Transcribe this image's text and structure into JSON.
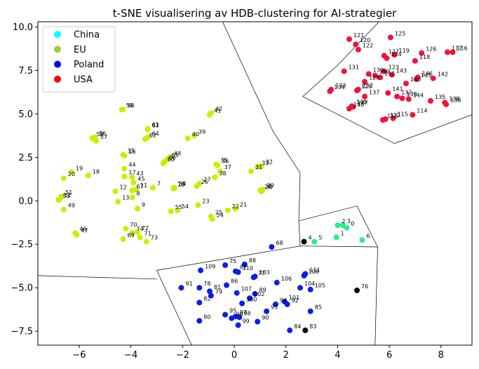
{
  "chart_data": {
    "type": "scatter",
    "title": "t-SNE visualisering av HDB-clustering for AI-strategier",
    "xlabel": "",
    "ylabel": "",
    "xlim": [
      -7.6,
      9.2
    ],
    "ylim": [
      -8.3,
      10.3
    ],
    "xticks": [
      "−6",
      "−4",
      "−2",
      "0",
      "2",
      "4",
      "6",
      "8"
    ],
    "xtick_values": [
      -6,
      -4,
      -2,
      0,
      2,
      4,
      6,
      8
    ],
    "yticks": [
      "−7.5",
      "−5.0",
      "−2.5",
      "0.0",
      "2.5",
      "5.0",
      "7.5",
      "10.0"
    ],
    "ytick_values": [
      -7.5,
      -5.0,
      -2.5,
      0.0,
      2.5,
      5.0,
      7.5,
      10.0
    ],
    "grid": false,
    "legend_position": "top-left",
    "legend": [
      {
        "name": "China",
        "color": "#00ffff"
      },
      {
        "name": "EU",
        "color": "#9acd32"
      },
      {
        "name": "Poland",
        "color": "#0000ff"
      },
      {
        "name": "USA",
        "color": "#ff0000"
      }
    ],
    "cluster_colors": {
      "eu_cluster": "#c8f000",
      "poland_cluster": "#0a1ee6",
      "usa_cluster": "#f0143c",
      "china_cluster": "#28f08c",
      "noise": "#000000"
    },
    "points": [
      {
        "id": "0",
        "x": 4.35,
        "y": -1.55,
        "c": "china_cluster"
      },
      {
        "id": "1",
        "x": 3.95,
        "y": -2.1,
        "c": "china_cluster"
      },
      {
        "id": "2",
        "x": 4.0,
        "y": -1.4,
        "c": "china_cluster"
      },
      {
        "id": "3",
        "x": 4.2,
        "y": -1.4,
        "c": "china_cluster"
      },
      {
        "id": "4",
        "x": 2.7,
        "y": -2.35,
        "c": "noise"
      },
      {
        "id": "5",
        "x": 3.1,
        "y": -2.35,
        "c": "china_cluster"
      },
      {
        "id": "6",
        "x": 4.95,
        "y": -2.25,
        "c": "china_cluster"
      },
      {
        "id": "7",
        "x": -3.15,
        "y": 0.75,
        "c": "eu_cluster"
      },
      {
        "id": "8",
        "x": -3.95,
        "y": 0.2,
        "c": "eu_cluster"
      },
      {
        "id": "9",
        "x": -3.75,
        "y": -0.45,
        "c": "eu_cluster"
      },
      {
        "id": "10",
        "x": -2.35,
        "y": 0.7,
        "c": "eu_cluster"
      },
      {
        "id": "11",
        "x": -3.8,
        "y": 0.65,
        "c": "eu_cluster"
      },
      {
        "id": "12",
        "x": -4.6,
        "y": 0.55,
        "c": "eu_cluster"
      },
      {
        "id": "13",
        "x": -4.5,
        "y": -0.05,
        "c": "eu_cluster"
      },
      {
        "id": "14",
        "x": -2.35,
        "y": 0.75,
        "c": "eu_cluster"
      },
      {
        "id": "15",
        "x": -4.3,
        "y": 2.65,
        "c": "eu_cluster"
      },
      {
        "id": "16",
        "x": -4.25,
        "y": 2.6,
        "c": "eu_cluster"
      },
      {
        "id": "17",
        "x": -4.25,
        "y": 1.4,
        "c": "eu_cluster"
      },
      {
        "id": "18",
        "x": -5.65,
        "y": 1.45,
        "c": "eu_cluster"
      },
      {
        "id": "19",
        "x": -6.3,
        "y": 1.65,
        "c": "eu_cluster"
      },
      {
        "id": "20",
        "x": -6.6,
        "y": 1.3,
        "c": "eu_cluster"
      },
      {
        "id": "21",
        "x": 0.05,
        "y": -0.45,
        "c": "eu_cluster"
      },
      {
        "id": "22",
        "x": -0.25,
        "y": -0.55,
        "c": "eu_cluster"
      },
      {
        "id": "23",
        "x": -1.4,
        "y": -0.25,
        "c": "eu_cluster"
      },
      {
        "id": "24",
        "x": -0.85,
        "y": -1.05,
        "c": "eu_cluster"
      },
      {
        "id": "25",
        "x": -0.9,
        "y": -0.9,
        "c": "eu_cluster"
      },
      {
        "id": "26",
        "x": -1.45,
        "y": 0.85,
        "c": "eu_cluster"
      },
      {
        "id": "27",
        "x": -1.35,
        "y": 1.0,
        "c": "eu_cluster"
      },
      {
        "id": "28",
        "x": 1.0,
        "y": 0.6,
        "c": "eu_cluster"
      },
      {
        "id": "29",
        "x": 1.1,
        "y": 0.65,
        "c": "eu_cluster"
      },
      {
        "id": "30",
        "x": 1.05,
        "y": 0.55,
        "c": "eu_cluster"
      },
      {
        "id": "31",
        "x": 0.65,
        "y": 1.7,
        "c": "eu_cluster"
      },
      {
        "id": "32",
        "x": 1.05,
        "y": 2.0,
        "c": "eu_cluster"
      },
      {
        "id": "33",
        "x": 0.9,
        "y": 1.95,
        "c": "eu_cluster"
      },
      {
        "id": "34",
        "x": -2.3,
        "y": 0.75,
        "c": "eu_cluster"
      },
      {
        "id": "35",
        "x": -0.7,
        "y": 2.1,
        "c": "eu_cluster"
      },
      {
        "id": "36",
        "x": -0.65,
        "y": 2.05,
        "c": "eu_cluster"
      },
      {
        "id": "37",
        "x": -0.55,
        "y": 1.7,
        "c": "eu_cluster"
      },
      {
        "id": "38",
        "x": -0.75,
        "y": 1.35,
        "c": "eu_cluster"
      },
      {
        "id": "39",
        "x": -1.55,
        "y": 3.75,
        "c": "eu_cluster"
      },
      {
        "id": "40",
        "x": -1.8,
        "y": 3.6,
        "c": "eu_cluster"
      },
      {
        "id": "41",
        "x": -0.95,
        "y": 4.95,
        "c": "eu_cluster"
      },
      {
        "id": "42",
        "x": -0.9,
        "y": 5.05,
        "c": "eu_cluster"
      },
      {
        "id": "43",
        "x": -3.95,
        "y": 1.35,
        "c": "eu_cluster"
      },
      {
        "id": "44",
        "x": -4.25,
        "y": 1.85,
        "c": "eu_cluster"
      },
      {
        "id": "45",
        "x": -3.9,
        "y": 1.05,
        "c": "eu_cluster"
      },
      {
        "id": "46",
        "x": -6.15,
        "y": -1.85,
        "c": "eu_cluster"
      },
      {
        "id": "47",
        "x": -6.1,
        "y": -1.95,
        "c": "eu_cluster"
      },
      {
        "id": "48",
        "x": -2.5,
        "y": 2.5,
        "c": "eu_cluster"
      },
      {
        "id": "49",
        "x": -6.6,
        "y": -0.5,
        "c": "eu_cluster"
      },
      {
        "id": "50",
        "x": -4.3,
        "y": 5.25,
        "c": "eu_cluster"
      },
      {
        "id": "51",
        "x": -6.7,
        "y": 0.25,
        "c": "eu_cluster"
      },
      {
        "id": "52",
        "x": -6.75,
        "y": 0.1,
        "c": "eu_cluster"
      },
      {
        "id": "53",
        "x": -6.8,
        "y": 0.05,
        "c": "eu_cluster"
      },
      {
        "id": "54",
        "x": -2.2,
        "y": -0.55,
        "c": "eu_cluster"
      },
      {
        "id": "55",
        "x": -2.45,
        "y": -0.6,
        "c": "eu_cluster"
      },
      {
        "id": "56",
        "x": -5.4,
        "y": 3.65,
        "c": "eu_cluster"
      },
      {
        "id": "57",
        "x": -5.35,
        "y": 3.45,
        "c": "eu_cluster"
      },
      {
        "id": "58",
        "x": -5.5,
        "y": 3.6,
        "c": "eu_cluster"
      },
      {
        "id": "59",
        "x": -4.35,
        "y": 5.25,
        "c": "eu_cluster"
      },
      {
        "id": "60",
        "x": -2.75,
        "y": 2.15,
        "c": "eu_cluster"
      },
      {
        "id": "61",
        "x": -3.35,
        "y": 4.15,
        "c": "eu_cluster"
      },
      {
        "id": "62",
        "x": -3.45,
        "y": 3.55,
        "c": "eu_cluster"
      },
      {
        "id": "63",
        "x": -3.35,
        "y": 4.1,
        "c": "eu_cluster"
      },
      {
        "id": "64",
        "x": -3.35,
        "y": 3.65,
        "c": "eu_cluster"
      },
      {
        "id": "65",
        "x": -2.6,
        "y": 2.4,
        "c": "eu_cluster"
      },
      {
        "id": "66",
        "x": -2.7,
        "y": 2.25,
        "c": "eu_cluster"
      },
      {
        "id": "67",
        "x": -3.95,
        "y": 0.6,
        "c": "eu_cluster"
      },
      {
        "id": "68",
        "x": 1.45,
        "y": -2.65,
        "c": "poland_cluster"
      },
      {
        "id": "69",
        "x": -4.3,
        "y": -2.2,
        "c": "eu_cluster"
      },
      {
        "id": "70",
        "x": -4.2,
        "y": -1.6,
        "c": "eu_cluster"
      },
      {
        "id": "71",
        "x": -3.65,
        "y": -2.1,
        "c": "eu_cluster"
      },
      {
        "id": "72",
        "x": -3.75,
        "y": -1.8,
        "c": "eu_cluster"
      },
      {
        "id": "73",
        "x": -3.4,
        "y": -2.35,
        "c": "eu_cluster"
      },
      {
        "id": "74",
        "x": -3.95,
        "y": -1.85,
        "c": "eu_cluster"
      },
      {
        "id": "75",
        "x": -0.35,
        "y": -3.7,
        "c": "poland_cluster"
      },
      {
        "id": "76",
        "x": 4.75,
        "y": -5.15,
        "c": "noise"
      },
      {
        "id": "77",
        "x": 0.75,
        "y": -4.4,
        "c": "poland_cluster"
      },
      {
        "id": "78",
        "x": -1.35,
        "y": -5.0,
        "c": "poland_cluster"
      },
      {
        "id": "79",
        "x": -0.9,
        "y": -5.45,
        "c": "poland_cluster"
      },
      {
        "id": "80",
        "x": -1.35,
        "y": -6.9,
        "c": "poland_cluster"
      },
      {
        "id": "81",
        "x": -0.95,
        "y": -5.2,
        "c": "poland_cluster"
      },
      {
        "id": "82",
        "x": -1.35,
        "y": -5.85,
        "c": "poland_cluster"
      },
      {
        "id": "83",
        "x": 2.75,
        "y": -7.45,
        "c": "noise"
      },
      {
        "id": "84",
        "x": 2.15,
        "y": -7.45,
        "c": "poland_cluster"
      },
      {
        "id": "85",
        "x": 2.95,
        "y": -6.35,
        "c": "poland_cluster"
      },
      {
        "id": "86",
        "x": -0.3,
        "y": -4.85,
        "c": "poland_cluster"
      },
      {
        "id": "87",
        "x": 0.05,
        "y": -4.05,
        "c": "poland_cluster"
      },
      {
        "id": "88",
        "x": 0.4,
        "y": -3.65,
        "c": "poland_cluster"
      },
      {
        "id": "89",
        "x": 0.8,
        "y": -5.35,
        "c": "poland_cluster"
      },
      {
        "id": "90",
        "x": 0.9,
        "y": -6.95,
        "c": "poland_cluster"
      },
      {
        "id": "91",
        "x": -2.05,
        "y": -5.0,
        "c": "poland_cluster"
      },
      {
        "id": "92",
        "x": 2.05,
        "y": -5.95,
        "c": "poland_cluster"
      },
      {
        "id": "93",
        "x": 1.25,
        "y": -6.35,
        "c": "poland_cluster"
      },
      {
        "id": "94",
        "x": 1.6,
        "y": -5.95,
        "c": "poland_cluster"
      },
      {
        "id": "95",
        "x": -0.35,
        "y": -6.55,
        "c": "poland_cluster"
      },
      {
        "id": "96",
        "x": -0.1,
        "y": -6.75,
        "c": "poland_cluster"
      },
      {
        "id": "97",
        "x": 0.05,
        "y": -6.65,
        "c": "poland_cluster"
      },
      {
        "id": "98",
        "x": 0.2,
        "y": -6.7,
        "c": "poland_cluster"
      },
      {
        "id": "99",
        "x": 0.15,
        "y": -7.15,
        "c": "poland_cluster"
      },
      {
        "id": "100",
        "x": 0.3,
        "y": -5.9,
        "c": "poland_cluster"
      },
      {
        "id": "101",
        "x": 1.95,
        "y": -5.8,
        "c": "poland_cluster"
      },
      {
        "id": "102",
        "x": 0.6,
        "y": -5.6,
        "c": "poland_cluster"
      },
      {
        "id": "103",
        "x": 0.8,
        "y": -4.35,
        "c": "poland_cluster"
      },
      {
        "id": "104",
        "x": 2.55,
        "y": -5.0,
        "c": "poland_cluster"
      },
      {
        "id": "105",
        "x": 2.95,
        "y": -5.1,
        "c": "poland_cluster"
      },
      {
        "id": "106",
        "x": 1.65,
        "y": -4.7,
        "c": "poland_cluster"
      },
      {
        "id": "107",
        "x": 0.1,
        "y": -5.3,
        "c": "poland_cluster"
      },
      {
        "id": "108",
        "x": 2.7,
        "y": -4.3,
        "c": "poland_cluster"
      },
      {
        "id": "109",
        "x": -1.3,
        "y": -4.0,
        "c": "poland_cluster"
      },
      {
        "id": "110",
        "x": 0.15,
        "y": -4.1,
        "c": "poland_cluster"
      },
      {
        "id": "111",
        "x": 2.75,
        "y": -4.2,
        "c": "poland_cluster"
      },
      {
        "id": "112",
        "x": 5.85,
        "y": 4.7,
        "c": "usa_cluster"
      },
      {
        "id": "113",
        "x": 5.75,
        "y": 4.65,
        "c": "usa_cluster"
      },
      {
        "id": "114",
        "x": 6.9,
        "y": 4.95,
        "c": "usa_cluster"
      },
      {
        "id": "115",
        "x": 6.15,
        "y": 4.75,
        "c": "usa_cluster"
      },
      {
        "id": "116",
        "x": 8.45,
        "y": 8.55,
        "c": "usa_cluster"
      },
      {
        "id": "117",
        "x": 8.25,
        "y": 8.55,
        "c": "usa_cluster"
      },
      {
        "id": "118",
        "x": 7.0,
        "y": 8.05,
        "c": "usa_cluster"
      },
      {
        "id": "119",
        "x": 6.2,
        "y": 8.4,
        "c": "usa_cluster"
      },
      {
        "id": "120",
        "x": 4.7,
        "y": 9.0,
        "c": "usa_cluster"
      },
      {
        "id": "121",
        "x": 4.45,
        "y": 9.3,
        "c": "usa_cluster"
      },
      {
        "id": "122",
        "x": 4.8,
        "y": 8.7,
        "c": "usa_cluster"
      },
      {
        "id": "123",
        "x": 5.8,
        "y": 7.45,
        "c": "usa_cluster"
      },
      {
        "id": "124",
        "x": 5.9,
        "y": 8.2,
        "c": "usa_cluster"
      },
      {
        "id": "125",
        "x": 6.05,
        "y": 9.4,
        "c": "usa_cluster"
      },
      {
        "id": "126",
        "x": 7.25,
        "y": 8.5,
        "c": "usa_cluster"
      },
      {
        "id": "127",
        "x": 5.8,
        "y": 8.35,
        "c": "usa_cluster"
      },
      {
        "id": "128",
        "x": 5.05,
        "y": 6.85,
        "c": "usa_cluster"
      },
      {
        "id": "129",
        "x": 4.75,
        "y": 6.35,
        "c": "usa_cluster"
      },
      {
        "id": "130",
        "x": 5.2,
        "y": 7.3,
        "c": "usa_cluster"
      },
      {
        "id": "131",
        "x": 4.25,
        "y": 7.45,
        "c": "usa_cluster"
      },
      {
        "id": "132",
        "x": 6.3,
        "y": 6.0,
        "c": "usa_cluster"
      },
      {
        "id": "133",
        "x": 3.75,
        "y": 6.4,
        "c": "usa_cluster"
      },
      {
        "id": "134",
        "x": 3.7,
        "y": 6.3,
        "c": "usa_cluster"
      },
      {
        "id": "135",
        "x": 7.6,
        "y": 5.75,
        "c": "usa_cluster"
      },
      {
        "id": "136",
        "x": 8.2,
        "y": 5.55,
        "c": "usa_cluster"
      },
      {
        "id": "137",
        "x": 5.05,
        "y": 6.0,
        "c": "usa_cluster"
      },
      {
        "id": "138",
        "x": 8.15,
        "y": 5.65,
        "c": "usa_cluster"
      },
      {
        "id": "139",
        "x": 6.5,
        "y": 5.9,
        "c": "usa_cluster"
      },
      {
        "id": "140",
        "x": 6.65,
        "y": 6.75,
        "c": "usa_cluster"
      },
      {
        "id": "141",
        "x": 5.95,
        "y": 6.2,
        "c": "usa_cluster"
      },
      {
        "id": "142",
        "x": 7.7,
        "y": 7.05,
        "c": "usa_cluster"
      },
      {
        "id": "143",
        "x": 6.1,
        "y": 7.25,
        "c": "usa_cluster"
      },
      {
        "id": "144",
        "x": 6.75,
        "y": 5.85,
        "c": "usa_cluster"
      },
      {
        "id": "145",
        "x": 7.05,
        "y": 7.0,
        "c": "usa_cluster"
      },
      {
        "id": "146",
        "x": 7.1,
        "y": 7.1,
        "c": "usa_cluster"
      },
      {
        "id": "147",
        "x": 4.6,
        "y": 5.4,
        "c": "usa_cluster"
      },
      {
        "id": "148",
        "x": 4.45,
        "y": 5.3,
        "c": "usa_cluster"
      },
      {
        "id": "149",
        "x": 4.55,
        "y": 5.45,
        "c": "usa_cluster"
      },
      {
        "id": "150",
        "x": 5.45,
        "y": 7.2,
        "c": "usa_cluster"
      },
      {
        "id": "151",
        "x": 5.65,
        "y": 7.1,
        "c": "usa_cluster"
      },
      {
        "id": "152",
        "x": 4.8,
        "y": 6.4,
        "c": "usa_cluster"
      }
    ],
    "boundaries": [
      [
        [
          -0.45,
          10.3
        ],
        [
          1.5,
          4.0
        ],
        [
          2.55,
          1.6
        ],
        [
          2.5,
          -1.15
        ]
      ],
      [
        [
          -7.6,
          -4.3
        ],
        [
          -3.0,
          -4.5
        ]
      ],
      [
        [
          -1.65,
          -8.3
        ],
        [
          -3.0,
          -4.0
        ]
      ],
      [
        [
          -3.0,
          -4.0
        ],
        [
          2.55,
          -2.6
        ],
        [
          2.5,
          -1.15
        ]
      ],
      [
        [
          2.55,
          -2.6
        ],
        [
          5.55,
          -2.65
        ]
      ],
      [
        [
          5.45,
          -8.3
        ],
        [
          5.55,
          -2.65
        ]
      ],
      [
        [
          2.5,
          -1.15
        ],
        [
          4.75,
          -0.3
        ],
        [
          5.55,
          -2.65
        ]
      ],
      [
        [
          2.65,
          6.0
        ],
        [
          4.0,
          7.8
        ],
        [
          5.6,
          10.3
        ]
      ],
      [
        [
          2.65,
          6.0
        ],
        [
          6.2,
          3.3
        ],
        [
          9.2,
          4.95
        ]
      ]
    ]
  }
}
